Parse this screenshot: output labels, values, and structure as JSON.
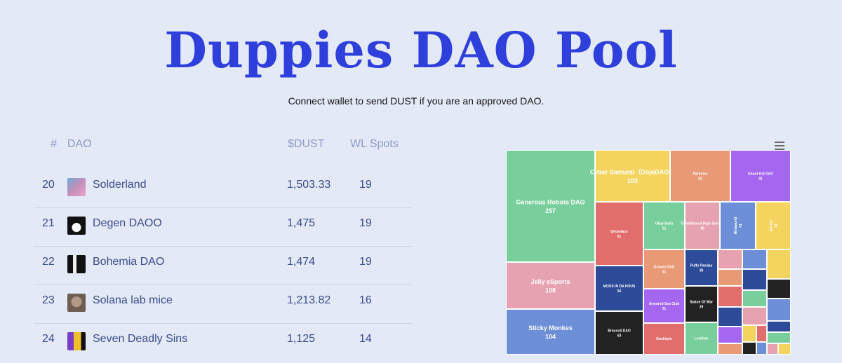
{
  "page": {
    "title": "Duppies DAO Pool",
    "subtitle": "Connect wallet to send DUST if you are an approved DAO."
  },
  "table": {
    "headers": {
      "rank": "#",
      "dao": "DAO",
      "dust": "$DUST",
      "wl": "WL Spots"
    },
    "rows": [
      {
        "rank": "20",
        "name": "Solderland",
        "dust": "1,503.33",
        "wl": "19",
        "avatar_color": "#c48fb8"
      },
      {
        "rank": "21",
        "name": "Degen DAOO",
        "dust": "1,475",
        "wl": "19",
        "avatar_color": "#111111"
      },
      {
        "rank": "22",
        "name": "Bohemia DAO",
        "dust": "1,474",
        "wl": "19",
        "avatar_color": "#222222"
      },
      {
        "rank": "23",
        "name": "Solana lab mice",
        "dust": "1,213.82",
        "wl": "16",
        "avatar_color": "#8a7a6e"
      },
      {
        "rank": "24",
        "name": "Seven Deadly Sins",
        "dust": "1,125",
        "wl": "14",
        "avatar_color": "#d4a21c"
      }
    ]
  },
  "chart_data": {
    "type": "treemap",
    "menu_icon": "hamburger-menu-icon",
    "items": [
      {
        "name": "Generous Robots DAO",
        "value": "257",
        "color": "#78cf9b"
      },
      {
        "name": "Cyber Samurai（DojoDAO）",
        "value": "103",
        "color": "#f4d45e"
      },
      {
        "name": "Particles",
        "value": "81",
        "color": "#e89a76"
      },
      {
        "name": "Ghost Kid DAO",
        "value": "81",
        "color": "#a566f0"
      },
      {
        "name": "Ghostface",
        "value": "61",
        "color": "#e16e6c"
      },
      {
        "name": "Okay Bulls",
        "value": "51",
        "color": "#78cf9b"
      },
      {
        "name": "TombStoned High Society",
        "value": "45",
        "color": "#e7a2b2"
      },
      {
        "name": "Metaworld",
        "value": "41",
        "color": "#6c8fd8"
      },
      {
        "name": "Aurory",
        "value": "41",
        "color": "#f4d45e"
      },
      {
        "name": "Jelly eSports",
        "value": "108",
        "color": "#e7a2b2"
      },
      {
        "name": "MOUS IN DA HOUS",
        "value": "56",
        "color": "#2e4b99"
      },
      {
        "name": "Groove DAO",
        "value": "41",
        "color": "#e89a76"
      },
      {
        "name": "Puffy Pandas",
        "value": "38",
        "color": "#2e4b99"
      },
      {
        "name": "Sticky Monkes",
        "value": "104",
        "color": "#6c8fd8"
      },
      {
        "name": "Broccoli DAO",
        "value": "53",
        "color": "#222222"
      },
      {
        "name": "Armored Sea Club",
        "value": "31",
        "color": "#a566f0"
      },
      {
        "name": "Statue Of War",
        "value": "29",
        "color": "#222222"
      },
      {
        "name": "Duckbyte",
        "value": "",
        "color": "#e16e6c"
      },
      {
        "name": "Lowlime",
        "value": "",
        "color": "#78cf9b"
      }
    ]
  }
}
